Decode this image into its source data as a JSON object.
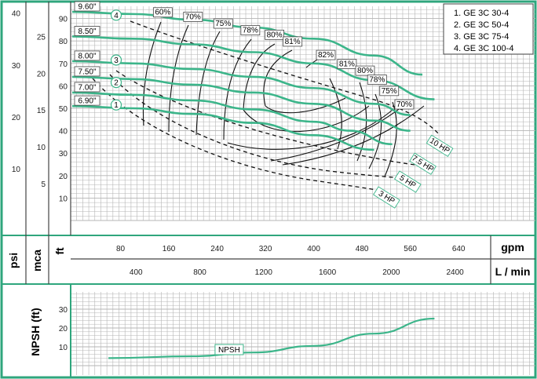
{
  "colors": {
    "frame": "#2fa67d",
    "curve": "#3cb58a",
    "grid": "#b5b5b5",
    "ink": "#111111"
  },
  "axes": {
    "psi_label": "psi",
    "mca_label": "mca",
    "ft_label": "ft",
    "gpm_label": "gpm",
    "lmin_label": "L / min",
    "npsh_label": "NPSH (ft)",
    "psi_ticks": [
      "10",
      "20",
      "30",
      "40"
    ],
    "mca_ticks": [
      "5",
      "10",
      "15",
      "20",
      "25"
    ],
    "ft_ticks": [
      "10",
      "20",
      "30",
      "40",
      "50",
      "60",
      "70",
      "80",
      "90"
    ],
    "gpm_ticks": [
      "80",
      "160",
      "240",
      "320",
      "400",
      "480",
      "560",
      "640"
    ],
    "lmin_ticks": [
      "400",
      "800",
      "1200",
      "1600",
      "2000",
      "2400"
    ],
    "npsh_ticks": [
      "10",
      "20",
      "30"
    ]
  },
  "legend": [
    "1. GE 3C 30-4",
    "2. GE 3C 50-4",
    "3. GE 3C 75-4",
    "4. GE 3C 100-4"
  ],
  "chart_data": {
    "type": "line",
    "title": "",
    "xlabel": "gpm",
    "x_secondary_label": "L / min",
    "ylabel": "ft",
    "y_secondary_labels": [
      "psi",
      "mca"
    ],
    "xlim": [
      0,
      730
    ],
    "ylim": [
      0,
      95
    ],
    "series": [
      {
        "name": "1",
        "impeller": "6.90\"",
        "points": [
          [
            0,
            51
          ],
          [
            100,
            50
          ],
          [
            200,
            47.5
          ],
          [
            300,
            43.5
          ],
          [
            400,
            38
          ],
          [
            500,
            31.5
          ]
        ]
      },
      {
        "name": "",
        "impeller": "7.00\"",
        "points": [
          [
            0,
            57
          ],
          [
            100,
            56
          ],
          [
            200,
            53.5
          ],
          [
            300,
            49.5
          ],
          [
            400,
            44
          ],
          [
            460,
            40
          ],
          [
            530,
            34
          ]
        ]
      },
      {
        "name": "2",
        "impeller": "7.50\"",
        "points": [
          [
            0,
            64
          ],
          [
            100,
            63
          ],
          [
            200,
            60.5
          ],
          [
            300,
            57
          ],
          [
            400,
            52
          ],
          [
            500,
            44.5
          ],
          [
            560,
            40
          ]
        ]
      },
      {
        "name": "3",
        "impeller": "8.00\"",
        "points": [
          [
            0,
            71
          ],
          [
            100,
            70
          ],
          [
            200,
            67.5
          ],
          [
            300,
            64
          ],
          [
            400,
            59
          ],
          [
            500,
            52
          ],
          [
            560,
            47
          ]
        ]
      },
      {
        "name": "",
        "impeller": "8.50\"",
        "points": [
          [
            0,
            82
          ],
          [
            100,
            81
          ],
          [
            200,
            78.5
          ],
          [
            300,
            75
          ],
          [
            400,
            70
          ],
          [
            500,
            62.5
          ],
          [
            600,
            54
          ]
        ]
      },
      {
        "name": "4",
        "impeller": "9.60\"",
        "points": [
          [
            0,
            93
          ],
          [
            100,
            92
          ],
          [
            200,
            89.5
          ],
          [
            300,
            86
          ],
          [
            400,
            81
          ],
          [
            500,
            73.5
          ],
          [
            580,
            65
          ]
        ]
      }
    ],
    "efficiency_labels": [
      "60%",
      "70%",
      "75%",
      "78%",
      "80%",
      "81%",
      "82%",
      "81%",
      "80%",
      "78%",
      "75%",
      "70%"
    ],
    "power_labels": [
      "10 HP",
      "7.5 HP",
      "5 HP",
      "3 HP"
    ],
    "npsh": {
      "label": "NPSH",
      "points": [
        [
          60,
          4
        ],
        [
          200,
          5
        ],
        [
          300,
          7
        ],
        [
          400,
          10.5
        ],
        [
          500,
          17
        ],
        [
          600,
          25
        ]
      ]
    }
  }
}
